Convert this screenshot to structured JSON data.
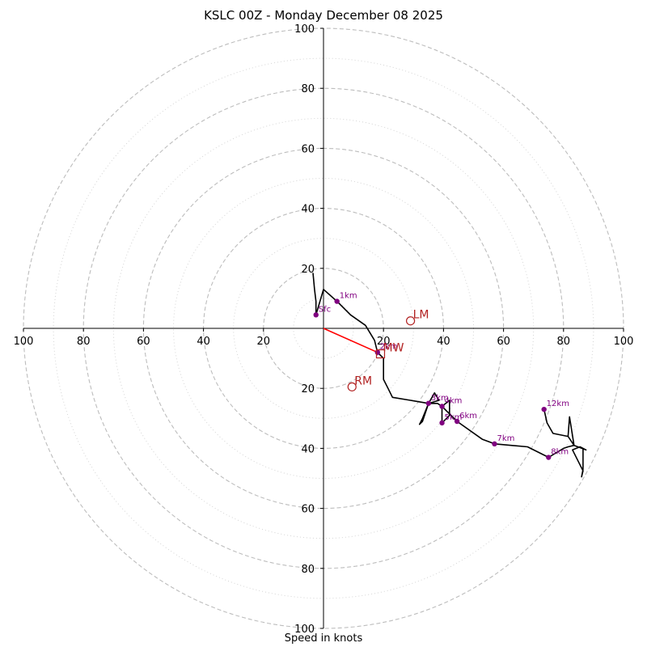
{
  "chart_data": {
    "type": "hodograph",
    "title": "KSLC 00Z - Monday December 08 2025",
    "xlabel": "Speed in knots",
    "range": [
      -100,
      100
    ],
    "rings_major": [
      20,
      40,
      60,
      80,
      100
    ],
    "rings_minor": [
      10,
      30,
      50,
      70,
      90
    ],
    "x_tick_labels": [
      "100",
      "80",
      "60",
      "40",
      "20",
      "20",
      "40",
      "60",
      "80",
      "100"
    ],
    "x_tick_values": [
      -100,
      -80,
      -60,
      -40,
      -20,
      20,
      40,
      60,
      80,
      100
    ],
    "y_tick_labels": [
      "100",
      "80",
      "60",
      "40",
      "20",
      "20",
      "40",
      "60",
      "80",
      "100"
    ],
    "y_tick_values": [
      100,
      80,
      60,
      40,
      20,
      -20,
      -40,
      -60,
      -80,
      -100
    ],
    "trace": [
      [
        -3.5,
        18.5
      ],
      [
        -3,
        13
      ],
      [
        -2.5,
        9
      ],
      [
        -2.5,
        4.5
      ],
      [
        0,
        13
      ],
      [
        4.5,
        9
      ],
      [
        9,
        4.5
      ],
      [
        14,
        1
      ],
      [
        17,
        -4
      ],
      [
        18,
        -8
      ],
      [
        20,
        -10
      ],
      [
        20,
        -17
      ],
      [
        21.5,
        -20
      ],
      [
        23,
        -23
      ],
      [
        29,
        -24
      ],
      [
        35,
        -25
      ],
      [
        37,
        -21.5
      ],
      [
        38.5,
        -24
      ],
      [
        35,
        -25
      ],
      [
        33,
        -30
      ],
      [
        32,
        -32
      ],
      [
        33,
        -31
      ],
      [
        35,
        -25
      ],
      [
        38,
        -25
      ],
      [
        39.5,
        -26
      ],
      [
        42,
        -24
      ],
      [
        42,
        -29
      ],
      [
        39.5,
        -31.5
      ],
      [
        39.5,
        -26
      ],
      [
        44.5,
        -31
      ],
      [
        53,
        -37
      ],
      [
        57,
        -38.5
      ],
      [
        68,
        -39.5
      ],
      [
        75,
        -43
      ],
      [
        80,
        -40
      ],
      [
        81.5,
        -39.5
      ],
      [
        83.5,
        -39
      ],
      [
        82,
        -29.5
      ],
      [
        81.5,
        -36
      ],
      [
        76.5,
        -35
      ],
      [
        74.5,
        -31.5
      ],
      [
        73.5,
        -27
      ],
      [
        74.5,
        -31.5
      ],
      [
        76.5,
        -35
      ],
      [
        81.5,
        -36
      ],
      [
        83.5,
        -39
      ],
      [
        87.5,
        -40.5
      ],
      [
        85.5,
        -39.5
      ],
      [
        83,
        -40.5
      ],
      [
        86.5,
        -47.5
      ],
      [
        86,
        -49.5
      ],
      [
        86.5,
        -47
      ],
      [
        86.5,
        -40
      ],
      [
        87.5,
        -40.5
      ]
    ],
    "height_points": [
      {
        "label": "Sfc",
        "u": -2.5,
        "v": 4.5
      },
      {
        "label": "1km",
        "u": 4.5,
        "v": 9
      },
      {
        "label": "2km",
        "u": 18,
        "v": -8
      },
      {
        "label": "3km",
        "u": 35,
        "v": -25
      },
      {
        "label": "4km",
        "u": 39.5,
        "v": -26
      },
      {
        "label": "5km",
        "u": 39.5,
        "v": -31.5
      },
      {
        "label": "6km",
        "u": 44.5,
        "v": -31
      },
      {
        "label": "7km",
        "u": 57,
        "v": -38.5
      },
      {
        "label": "8km",
        "u": 75,
        "v": -43
      },
      {
        "label": "12km",
        "u": 73.5,
        "v": -27
      }
    ],
    "motion_markers": [
      {
        "label": "LM",
        "u": 29,
        "v": 2.5,
        "shape": "circle"
      },
      {
        "label": "RM",
        "u": 9.5,
        "v": -19.5,
        "shape": "circle"
      },
      {
        "label": "MW",
        "u": 19,
        "v": -8.5,
        "shape": "square"
      }
    ],
    "shear_vector": {
      "from": [
        0,
        0
      ],
      "to": [
        18,
        -8
      ]
    },
    "colors": {
      "trace": "#000000",
      "height_points": "#800080",
      "motion": "#b22222",
      "shear": "#ff0000",
      "rings": "#bdbdbd"
    }
  }
}
